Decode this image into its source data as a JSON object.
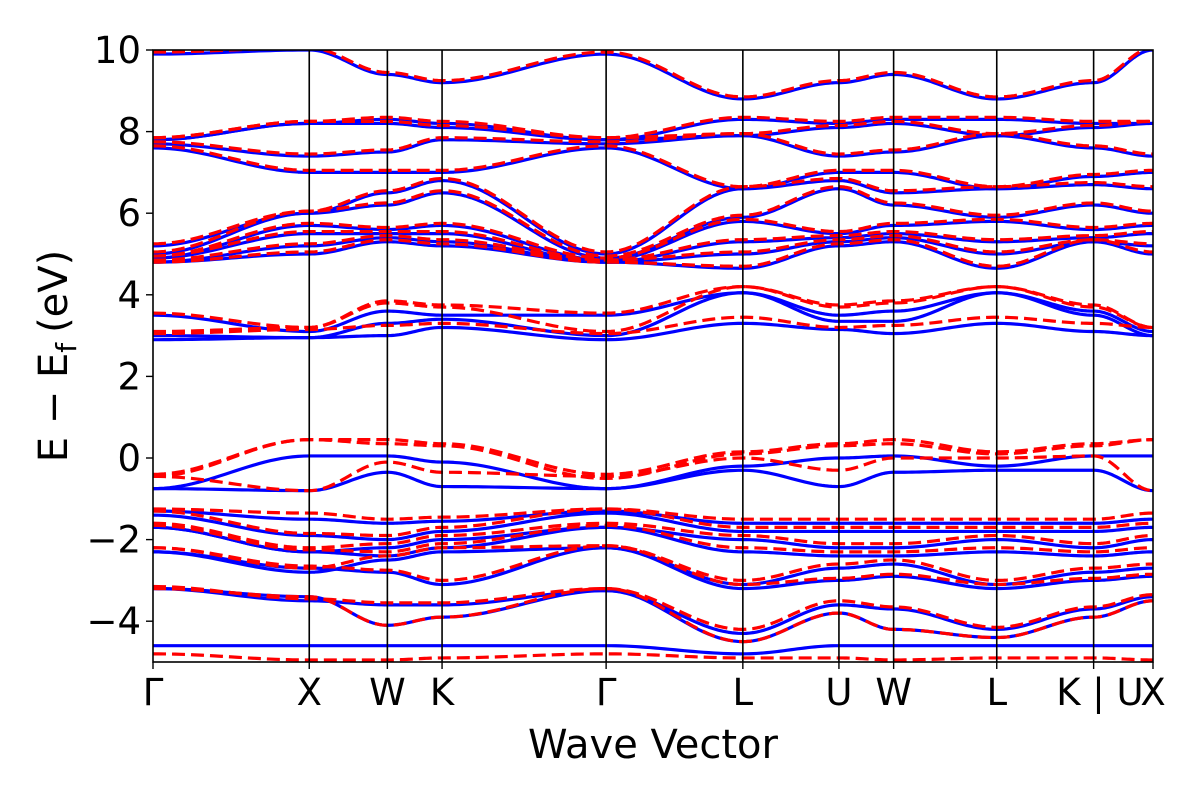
{
  "chart_data": {
    "type": "line",
    "title": "",
    "xlabel": "Wave Vector",
    "ylabel": {
      "base": "E − E",
      "subscript": "f",
      "unit": "(eV)"
    },
    "ylim": [
      -5,
      10
    ],
    "yticks": [
      -4,
      -2,
      0,
      2,
      4,
      6,
      8,
      10
    ],
    "ytick_labels": [
      "−4",
      "−2",
      "0",
      "2",
      "4",
      "6",
      "8",
      "10"
    ],
    "xlim": [
      0,
      12.8
    ],
    "kpoints": [
      {
        "label": "Γ",
        "x": 0.0
      },
      {
        "label": "X",
        "x": 2.0
      },
      {
        "label": "W",
        "x": 3.0
      },
      {
        "label": "K",
        "x": 3.7
      },
      {
        "label": "Γ",
        "x": 5.8
      },
      {
        "label": "L",
        "x": 7.55
      },
      {
        "label": "U",
        "x": 8.78
      },
      {
        "label": "W",
        "x": 9.48
      },
      {
        "label": "L",
        "x": 10.8
      },
      {
        "label": "K | U",
        "x": 12.04
      },
      {
        "label": "X",
        "x": 12.8
      }
    ],
    "series": [
      {
        "name": "blue",
        "color": "#0000ff",
        "style": "solid",
        "bands": [
          [
            -4.6,
            -4.6,
            -4.6,
            -4.6,
            -4.6,
            -4.8,
            -4.6,
            -4.6,
            -4.6,
            -4.6,
            -4.6
          ],
          [
            -3.2,
            -3.4,
            -4.1,
            -3.9,
            -3.25,
            -4.5,
            -3.8,
            -4.2,
            -4.4,
            -3.9,
            -3.5
          ],
          [
            -3.2,
            -3.5,
            -3.6,
            -3.6,
            -3.25,
            -4.3,
            -3.6,
            -3.7,
            -4.2,
            -3.7,
            -3.4
          ],
          [
            -2.3,
            -2.7,
            -2.8,
            -3.1,
            -2.2,
            -3.2,
            -3.0,
            -2.9,
            -3.2,
            -3.0,
            -2.9
          ],
          [
            -2.3,
            -2.8,
            -2.5,
            -2.3,
            -2.2,
            -3.1,
            -2.7,
            -2.6,
            -3.1,
            -2.8,
            -2.7
          ],
          [
            -1.7,
            -2.3,
            -2.4,
            -2.2,
            -1.7,
            -2.3,
            -2.4,
            -2.4,
            -2.3,
            -2.4,
            -2.3
          ],
          [
            -1.7,
            -2.3,
            -2.2,
            -2.0,
            -1.7,
            -2.0,
            -2.2,
            -2.2,
            -2.0,
            -2.2,
            -2.0
          ],
          [
            -1.4,
            -1.9,
            -2.0,
            -1.8,
            -1.35,
            -1.8,
            -1.8,
            -1.8,
            -1.8,
            -1.8,
            -1.7
          ],
          [
            -1.3,
            -1.5,
            -1.6,
            -1.55,
            -1.3,
            -1.6,
            -1.6,
            -1.6,
            -1.6,
            -1.6,
            -1.5
          ],
          [
            -0.75,
            -0.8,
            -0.35,
            -0.7,
            -0.75,
            -0.3,
            -0.7,
            -0.35,
            -0.3,
            -0.3,
            -0.8
          ],
          [
            -0.75,
            0.05,
            0.05,
            -0.1,
            -0.75,
            -0.2,
            0.0,
            0.05,
            -0.2,
            0.05,
            0.05
          ],
          [
            2.9,
            2.95,
            3.0,
            3.2,
            2.9,
            3.3,
            3.15,
            3.05,
            3.3,
            3.1,
            3.0
          ],
          [
            3.0,
            2.95,
            3.3,
            3.4,
            3.0,
            4.05,
            3.35,
            3.35,
            4.05,
            3.5,
            3.0
          ],
          [
            3.5,
            3.1,
            3.6,
            3.5,
            3.5,
            4.05,
            3.5,
            3.6,
            4.05,
            3.6,
            3.1
          ],
          [
            4.8,
            5.0,
            5.3,
            5.2,
            4.8,
            4.65,
            5.2,
            5.3,
            4.65,
            5.3,
            5.0
          ],
          [
            4.8,
            5.2,
            5.4,
            5.3,
            4.8,
            5.0,
            5.3,
            5.4,
            5.0,
            5.3,
            5.2
          ],
          [
            4.9,
            5.5,
            5.5,
            5.5,
            4.8,
            5.3,
            5.4,
            5.5,
            5.3,
            5.4,
            5.5
          ],
          [
            4.9,
            5.7,
            5.6,
            5.7,
            4.85,
            5.8,
            5.5,
            5.7,
            5.8,
            5.6,
            5.7
          ],
          [
            5.0,
            6.0,
            6.2,
            6.5,
            4.9,
            5.9,
            6.6,
            6.2,
            5.9,
            6.2,
            6.0
          ],
          [
            5.2,
            6.0,
            6.5,
            6.8,
            5.0,
            6.6,
            6.8,
            6.5,
            6.6,
            6.7,
            6.6
          ],
          [
            7.6,
            7.0,
            7.0,
            7.0,
            7.6,
            6.6,
            7.0,
            7.0,
            6.6,
            6.9,
            7.0
          ],
          [
            7.7,
            7.4,
            7.5,
            7.8,
            7.7,
            7.9,
            7.4,
            7.5,
            7.9,
            7.6,
            7.4
          ],
          [
            7.8,
            8.2,
            8.2,
            8.1,
            7.8,
            7.9,
            8.1,
            8.2,
            7.9,
            8.1,
            8.2
          ],
          [
            7.8,
            8.2,
            8.3,
            8.2,
            7.8,
            8.3,
            8.2,
            8.3,
            8.3,
            8.2,
            8.2
          ],
          [
            9.9,
            10.0,
            9.4,
            9.2,
            9.9,
            8.8,
            9.2,
            9.4,
            8.8,
            9.2,
            10.0
          ]
        ]
      },
      {
        "name": "red",
        "color": "#ff0000",
        "style": "dashed",
        "bands": [
          [
            -4.8,
            -4.95,
            -4.95,
            -4.9,
            -4.8,
            -4.9,
            -4.9,
            -4.95,
            -4.9,
            -4.9,
            -4.95
          ],
          [
            -3.2,
            -3.4,
            -4.1,
            -3.9,
            -3.2,
            -4.5,
            -3.8,
            -4.2,
            -4.4,
            -3.9,
            -3.5
          ],
          [
            -3.15,
            -3.45,
            -3.55,
            -3.55,
            -3.2,
            -4.2,
            -3.5,
            -3.65,
            -4.15,
            -3.65,
            -3.35
          ],
          [
            -2.2,
            -2.65,
            -2.75,
            -3.0,
            -2.15,
            -3.1,
            -2.95,
            -2.85,
            -3.1,
            -2.95,
            -2.85
          ],
          [
            -2.2,
            -2.7,
            -2.4,
            -2.2,
            -2.15,
            -3.0,
            -2.6,
            -2.5,
            -3.0,
            -2.7,
            -2.6
          ],
          [
            -1.65,
            -2.25,
            -2.3,
            -2.1,
            -1.65,
            -2.2,
            -2.3,
            -2.3,
            -2.2,
            -2.3,
            -2.2
          ],
          [
            -1.6,
            -2.2,
            -2.1,
            -1.9,
            -1.6,
            -1.9,
            -2.1,
            -2.1,
            -1.9,
            -2.1,
            -1.9
          ],
          [
            -1.3,
            -1.85,
            -1.9,
            -1.7,
            -1.25,
            -1.7,
            -1.7,
            -1.7,
            -1.7,
            -1.7,
            -1.6
          ],
          [
            -1.25,
            -1.35,
            -1.5,
            -1.45,
            -1.25,
            -1.5,
            -1.5,
            -1.5,
            -1.5,
            -1.5,
            -1.35
          ],
          [
            -0.45,
            -0.8,
            -0.1,
            -0.35,
            -0.45,
            0.0,
            -0.3,
            0.0,
            0.0,
            0.05,
            -0.8
          ],
          [
            -0.4,
            0.45,
            0.45,
            0.35,
            -0.4,
            0.15,
            0.35,
            0.45,
            0.15,
            0.35,
            0.45
          ],
          [
            -0.45,
            0.45,
            0.35,
            0.3,
            -0.5,
            0.1,
            0.3,
            0.35,
            0.1,
            0.3,
            0.45
          ],
          [
            3.05,
            3.15,
            3.25,
            3.3,
            3.05,
            3.45,
            3.2,
            3.25,
            3.45,
            3.3,
            3.2
          ],
          [
            3.1,
            3.2,
            3.8,
            3.7,
            3.1,
            4.2,
            3.7,
            3.8,
            4.2,
            3.7,
            3.2
          ],
          [
            3.55,
            3.2,
            3.85,
            3.75,
            3.55,
            4.2,
            3.75,
            3.85,
            4.2,
            3.75,
            3.2
          ],
          [
            4.8,
            5.05,
            5.35,
            5.25,
            4.8,
            4.7,
            5.25,
            5.35,
            4.7,
            5.35,
            5.05
          ],
          [
            4.85,
            5.25,
            5.45,
            5.35,
            4.85,
            5.05,
            5.35,
            5.45,
            5.05,
            5.35,
            5.25
          ],
          [
            4.95,
            5.55,
            5.55,
            5.55,
            4.85,
            5.35,
            5.45,
            5.55,
            5.35,
            5.45,
            5.55
          ],
          [
            4.95,
            5.75,
            5.65,
            5.75,
            4.9,
            5.85,
            5.55,
            5.75,
            5.85,
            5.65,
            5.75
          ],
          [
            5.05,
            6.05,
            6.25,
            6.55,
            4.95,
            5.95,
            6.65,
            6.25,
            5.95,
            6.25,
            6.05
          ],
          [
            5.25,
            6.05,
            6.55,
            6.85,
            5.05,
            6.65,
            6.85,
            6.55,
            6.65,
            6.75,
            6.65
          ],
          [
            7.65,
            7.05,
            7.05,
            7.05,
            7.65,
            6.65,
            7.05,
            7.05,
            6.65,
            6.95,
            7.05
          ],
          [
            7.75,
            7.45,
            7.55,
            7.85,
            7.75,
            7.95,
            7.45,
            7.55,
            7.95,
            7.65,
            7.45
          ],
          [
            7.85,
            8.25,
            8.25,
            8.15,
            7.85,
            7.95,
            8.15,
            8.25,
            7.95,
            8.15,
            8.25
          ],
          [
            7.85,
            8.25,
            8.35,
            8.25,
            7.85,
            8.35,
            8.25,
            8.35,
            8.35,
            8.25,
            8.25
          ],
          [
            9.95,
            10.05,
            9.45,
            9.25,
            9.95,
            8.85,
            9.25,
            9.45,
            8.85,
            9.25,
            10.05
          ]
        ]
      }
    ]
  }
}
